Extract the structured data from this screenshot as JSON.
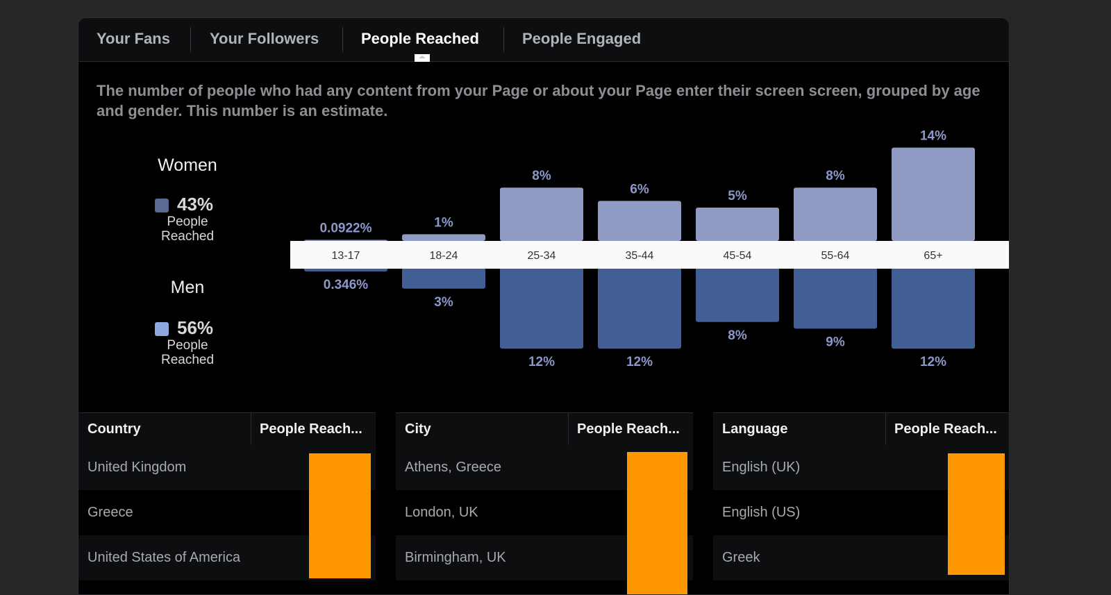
{
  "tabs": [
    {
      "label": "Your Fans"
    },
    {
      "label": "Your Followers"
    },
    {
      "label": "People Reached",
      "active": true
    },
    {
      "label": "People Engaged"
    }
  ],
  "description": "The number of people who had any content from your Page or about your Page enter their screen screen, grouped by age and gender. This number is an estimate.",
  "legend": {
    "women": {
      "title": "Women",
      "percent": "43%",
      "caption": "People Reached",
      "color": "#5b6a93"
    },
    "men": {
      "title": "Men",
      "percent": "56%",
      "caption": "People Reached",
      "color": "#8fa9df"
    }
  },
  "chart_data": {
    "type": "bar",
    "categories": [
      "13-17",
      "18-24",
      "25-34",
      "35-44",
      "45-54",
      "55-64",
      "65+"
    ],
    "series": [
      {
        "name": "Women",
        "values": [
          0.0922,
          1,
          8,
          6,
          5,
          8,
          14
        ],
        "labels": [
          "0.0922%",
          "1%",
          "8%",
          "6%",
          "5%",
          "8%",
          "14%"
        ],
        "color": "#8f9bc2"
      },
      {
        "name": "Men",
        "values": [
          0.346,
          3,
          12,
          12,
          8,
          9,
          12
        ],
        "labels": [
          "0.346%",
          "3%",
          "12%",
          "12%",
          "8%",
          "9%",
          "12%"
        ],
        "color": "#425f95"
      }
    ],
    "label_color": "#8c98c8"
  },
  "tables": [
    {
      "headers": [
        "Country",
        "People Reach..."
      ],
      "rows": [
        "United Kingdom",
        "Greece",
        "United States of America"
      ]
    },
    {
      "headers": [
        "City",
        "People Reach..."
      ],
      "rows": [
        "Athens, Greece",
        "London, UK",
        "Birmingham, UK"
      ]
    },
    {
      "headers": [
        "Language",
        "People Reach..."
      ],
      "rows": [
        "English (UK)",
        "English (US)",
        "Greek"
      ]
    }
  ],
  "accent_color": "#ff9800"
}
